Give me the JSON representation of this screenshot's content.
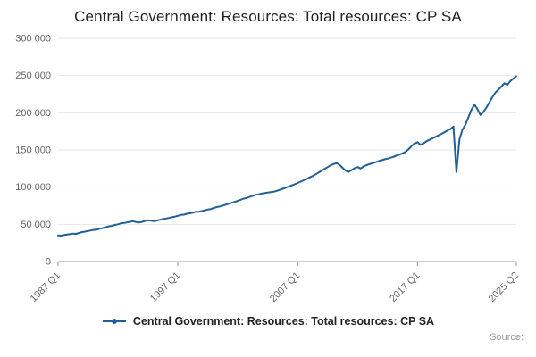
{
  "title": "Central Government: Resources: Total resources: CP SA",
  "legend": {
    "label": "Central Government: Resources: Total resources: CP SA"
  },
  "source_label": "Source:",
  "colors": {
    "line": "#206095",
    "grid": "#e6e6e6",
    "axis": "#999999",
    "title_text": "#222222",
    "axis_text": "#666666",
    "source_text": "#999999"
  },
  "chart_data": {
    "type": "line",
    "title": "Central Government: Resources: Total resources: CP SA",
    "frequency": "quarterly",
    "x_start": "1987 Q1",
    "x_end": "2025 Q2",
    "x_tick_labels": [
      "1987 Q1",
      "1997 Q1",
      "2007 Q1",
      "2017 Q1",
      "2025 Q2"
    ],
    "x_tick_indices": [
      0,
      40,
      80,
      120,
      153
    ],
    "ylim": [
      0,
      300000
    ],
    "y_tick_step": 50000,
    "y_tick_labels": [
      "0",
      "50 000",
      "100 000",
      "150 000",
      "200 000",
      "250 000",
      "300 000"
    ],
    "grid": "horizontal",
    "legend_position": "bottom",
    "series": [
      {
        "name": "Central Government: Resources: Total resources: CP SA",
        "values": [
          35000,
          34800,
          35600,
          36200,
          36800,
          37600,
          37200,
          38400,
          39600,
          40200,
          41000,
          41800,
          42600,
          43000,
          44200,
          45000,
          46200,
          47400,
          48000,
          49200,
          50000,
          51200,
          51800,
          52600,
          53400,
          54200,
          53000,
          52400,
          53200,
          54600,
          55400,
          54800,
          54200,
          55000,
          56200,
          57000,
          57800,
          58600,
          59800,
          60400,
          61400,
          62600,
          63000,
          64200,
          64800,
          65600,
          66800,
          67000,
          67800,
          68800,
          70000,
          70600,
          72000,
          73200,
          74000,
          75200,
          76400,
          77600,
          79000,
          80200,
          81600,
          83000,
          84600,
          85400,
          87000,
          88400,
          89600,
          90400,
          91400,
          92000,
          92600,
          93200,
          93800,
          95000,
          96400,
          97800,
          99200,
          100800,
          102400,
          103800,
          105600,
          107400,
          109200,
          111000,
          113000,
          115000,
          117200,
          119600,
          122000,
          124600,
          127000,
          129400,
          131000,
          132400,
          129800,
          126000,
          122000,
          120400,
          123000,
          125400,
          127000,
          125000,
          127800,
          129600,
          131000,
          132200,
          133400,
          135000,
          136200,
          137400,
          138200,
          139600,
          140600,
          142400,
          143600,
          145400,
          147400,
          151000,
          155000,
          158600,
          160400,
          157000,
          158800,
          161600,
          163600,
          165600,
          167600,
          169600,
          171600,
          173800,
          176000,
          178200,
          181400,
          120000,
          164000,
          177000,
          184000,
          194000,
          204000,
          211000,
          205000,
          197000,
          201000,
          207000,
          214000,
          221000,
          227000,
          231000,
          235000,
          239600,
          237400,
          242600,
          246000,
          249000
        ]
      }
    ]
  }
}
